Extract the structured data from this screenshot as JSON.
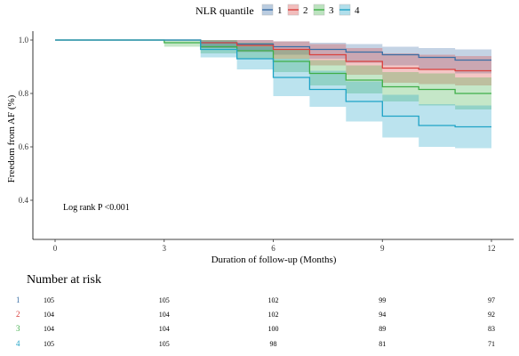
{
  "chart_data": {
    "type": "line",
    "subtype": "kaplan-meier",
    "legend_title": "NLR quantile",
    "legend_position": "top",
    "xlabel": "Duration of follow-up (Months)",
    "ylabel": "Freedom from AF (%)",
    "xlim": [
      0,
      12
    ],
    "ylim": [
      0.27,
      1.03
    ],
    "xticks": [
      0,
      3,
      6,
      9,
      12
    ],
    "yticks": [
      0.4,
      0.6,
      0.8,
      1.0
    ],
    "xtick_labels": [
      "0",
      "3",
      "6",
      "9",
      "12"
    ],
    "ytick_labels": [
      "0.4",
      "0.6",
      "0.8",
      "1.0"
    ],
    "grid": false,
    "annotation": "Log rank P <0.001",
    "series": [
      {
        "name": "1",
        "color": "#3a6ea5",
        "x": [
          0,
          3,
          4,
          5,
          6,
          7,
          8,
          9,
          10,
          11,
          12
        ],
        "y": [
          1.0,
          1.0,
          0.99,
          0.985,
          0.975,
          0.965,
          0.955,
          0.945,
          0.935,
          0.925,
          0.925
        ],
        "lower": [
          1.0,
          1.0,
          0.97,
          0.96,
          0.945,
          0.93,
          0.915,
          0.905,
          0.89,
          0.875,
          0.875
        ],
        "upper": [
          1.0,
          1.0,
          1.0,
          1.0,
          0.995,
          0.99,
          0.985,
          0.975,
          0.97,
          0.965,
          0.965
        ]
      },
      {
        "name": "2",
        "color": "#d9413e",
        "x": [
          0,
          3,
          4,
          5,
          6,
          7,
          8,
          9,
          10,
          11,
          12
        ],
        "y": [
          1.0,
          1.0,
          0.99,
          0.98,
          0.965,
          0.945,
          0.92,
          0.895,
          0.89,
          0.885,
          0.885
        ],
        "lower": [
          1.0,
          1.0,
          0.97,
          0.955,
          0.93,
          0.905,
          0.87,
          0.84,
          0.835,
          0.83,
          0.83
        ],
        "upper": [
          1.0,
          1.0,
          1.0,
          1.0,
          0.995,
          0.985,
          0.97,
          0.95,
          0.945,
          0.94,
          0.94
        ]
      },
      {
        "name": "3",
        "color": "#3fae49",
        "x": [
          0,
          3,
          4,
          5,
          6,
          7,
          8,
          9,
          10,
          11,
          12
        ],
        "y": [
          1.0,
          0.99,
          0.975,
          0.96,
          0.92,
          0.875,
          0.85,
          0.825,
          0.815,
          0.8,
          0.8
        ],
        "lower": [
          1.0,
          0.975,
          0.95,
          0.93,
          0.88,
          0.83,
          0.8,
          0.77,
          0.755,
          0.74,
          0.74
        ],
        "upper": [
          1.0,
          1.0,
          1.0,
          0.99,
          0.965,
          0.925,
          0.905,
          0.88,
          0.875,
          0.86,
          0.86
        ]
      },
      {
        "name": "4",
        "color": "#1fa3c6",
        "x": [
          0,
          3,
          4,
          5,
          6,
          7,
          8,
          9,
          10,
          11,
          12
        ],
        "y": [
          1.0,
          1.0,
          0.965,
          0.93,
          0.86,
          0.815,
          0.77,
          0.715,
          0.68,
          0.675,
          0.675
        ],
        "lower": [
          1.0,
          1.0,
          0.935,
          0.89,
          0.79,
          0.75,
          0.695,
          0.635,
          0.6,
          0.595,
          0.595
        ],
        "upper": [
          1.0,
          1.0,
          0.995,
          0.975,
          0.93,
          0.885,
          0.845,
          0.795,
          0.76,
          0.755,
          0.755
        ]
      }
    ]
  },
  "risk_table": {
    "title": "Number at risk",
    "times": [
      0,
      3,
      6,
      9,
      12
    ],
    "rows": [
      {
        "name": "1",
        "color": "#3a6ea5",
        "values": [
          "105",
          "105",
          "102",
          "99",
          "97"
        ]
      },
      {
        "name": "2",
        "color": "#d9413e",
        "values": [
          "104",
          "104",
          "102",
          "94",
          "92"
        ]
      },
      {
        "name": "3",
        "color": "#3fae49",
        "values": [
          "104",
          "104",
          "100",
          "89",
          "83"
        ]
      },
      {
        "name": "4",
        "color": "#1fa3c6",
        "values": [
          "105",
          "105",
          "98",
          "81",
          "71"
        ]
      }
    ]
  }
}
